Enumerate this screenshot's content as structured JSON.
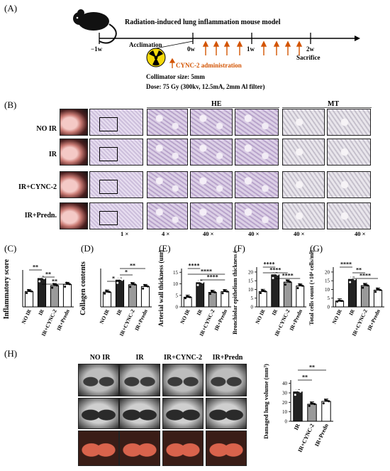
{
  "panels": {
    "A": "(A)",
    "B": "(B)",
    "C": "(C)",
    "D": "(D)",
    "E": "(E)",
    "F": "(F)",
    "G": "(G)",
    "H": "(H)"
  },
  "timeline": {
    "title": "Radiation-induced lung inflammation mouse model",
    "acclimation": "Acclimation",
    "ticks": [
      "−1w",
      "0w",
      "1w",
      "2w"
    ],
    "sacrifice": "Sacrifice",
    "cync_note": "CYNC-2 administration",
    "collimator": "Collimator size: 5mm",
    "dose": "Dose: 75 Gy (300kv, 12.5mA, 2mm Al filter)"
  },
  "histology": {
    "col_he": "HE",
    "col_mt": "MT",
    "rows": [
      "NO IR",
      "IR",
      "IR+CYNC-2",
      "IR+Predn."
    ],
    "mags": [
      "1 ×",
      "4 ×",
      "40 ×",
      "40 ×",
      "40 ×",
      "40 ×"
    ]
  },
  "imaging": {
    "cols": [
      "NO IR",
      "IR",
      "IR+CYNC-2",
      "IR+Predn"
    ]
  },
  "chart_data": [
    {
      "panel": "C",
      "type": "bar",
      "ylabel": "Inflammatory score",
      "categories": [
        "NO IR",
        "IR",
        "IR+CYNC-2",
        "IR+Predn"
      ],
      "values": [
        1.3,
        2.4,
        1.8,
        1.9
      ],
      "ylim": [
        0,
        3
      ],
      "yticks": [],
      "colors": [
        "#ffffff",
        "#222222",
        "#9a9a9a",
        "#ffffff"
      ],
      "significance": [
        "**",
        "**",
        "**"
      ]
    },
    {
      "panel": "D",
      "type": "bar",
      "ylabel": "Collagen contents",
      "categories": [
        "NO IR",
        "IR",
        "IR+CYNC-2",
        "IR+Predn"
      ],
      "values": [
        1.6,
        2.9,
        2.4,
        2.2
      ],
      "ylim": [
        0,
        4
      ],
      "yticks": [],
      "colors": [
        "#ffffff",
        "#222222",
        "#9a9a9a",
        "#ffffff"
      ],
      "significance": [
        "**",
        "*",
        "*"
      ]
    },
    {
      "panel": "E",
      "type": "bar",
      "ylabel": "Arterial wall thickness (um)",
      "categories": [
        "NO IR",
        "IR",
        "IR+CYNC-2",
        "IR+Predn"
      ],
      "values": [
        4.2,
        10.5,
        6.3,
        6.6
      ],
      "ylim": [
        0,
        16
      ],
      "yticks": [
        "0",
        "5",
        "10",
        "15"
      ],
      "colors": [
        "#ffffff",
        "#222222",
        "#9a9a9a",
        "#ffffff"
      ],
      "significance": [
        "****",
        "****",
        "****"
      ]
    },
    {
      "panel": "F",
      "type": "bar",
      "ylabel": "Bronchiolar epithelium thickness (um)",
      "categories": [
        "NO IR",
        "IR",
        "IR+CYNC-2",
        "IR+Predn"
      ],
      "values": [
        8.8,
        18.4,
        14.2,
        12.0
      ],
      "ylim": [
        0,
        22
      ],
      "yticks": [
        "0",
        "5",
        "10",
        "15",
        "20"
      ],
      "colors": [
        "#ffffff",
        "#222222",
        "#9a9a9a",
        "#ffffff"
      ],
      "significance": [
        "****",
        "****",
        "****"
      ]
    },
    {
      "panel": "G",
      "type": "bar",
      "ylabel": "Total cells count (×10⁴ cells/ml)",
      "categories": [
        "NO IR",
        "IR",
        "IR+CYNC-2",
        "IR+Predn"
      ],
      "values": [
        3.4,
        15.8,
        12.2,
        9.6
      ],
      "ylim": [
        0,
        22
      ],
      "yticks": [
        "0",
        "5",
        "10",
        "15",
        "20"
      ],
      "colors": [
        "#ffffff",
        "#222222",
        "#9a9a9a",
        "#ffffff"
      ],
      "significance": [
        "****",
        "**",
        "****"
      ]
    },
    {
      "panel": "H",
      "type": "bar",
      "ylabel": "Damaged lung volume (mm³)",
      "categories": [
        "IR",
        "IR+CYNC-2",
        "IR+Predn"
      ],
      "values": [
        31,
        18,
        21
      ],
      "ylim": [
        0,
        42
      ],
      "yticks": [
        "0",
        "10",
        "20",
        "30",
        "40"
      ],
      "colors": [
        "#222222",
        "#9a9a9a",
        "#ffffff"
      ],
      "significance": [
        "**",
        "**"
      ]
    }
  ]
}
